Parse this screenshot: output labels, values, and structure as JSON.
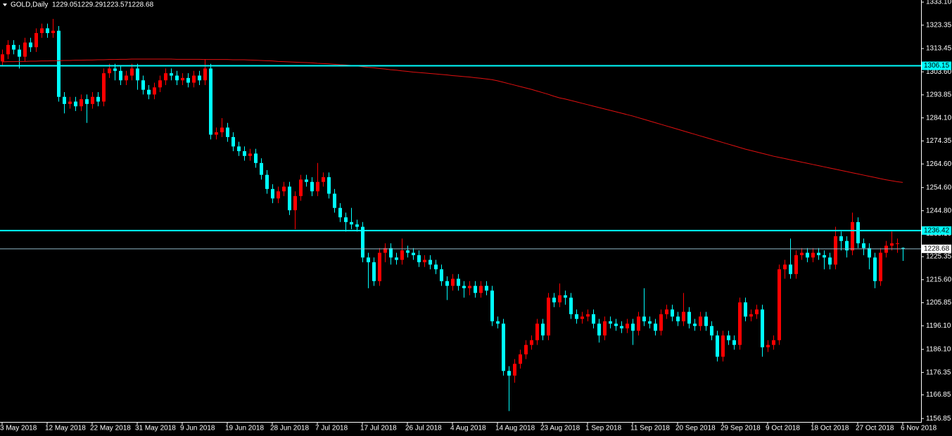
{
  "chart_data": {
    "type": "candlestick",
    "symbol": "GOLD,Daily",
    "categories": [
      "3 May 2018",
      null,
      null,
      null,
      null,
      null,
      null,
      null,
      "12 May 2018",
      null,
      null,
      null,
      null,
      null,
      null,
      null,
      "22 May 2018",
      null,
      null,
      null,
      null,
      null,
      null,
      null,
      "31 May 2018",
      null,
      null,
      null,
      null,
      null,
      null,
      null,
      "9 Jun 2018",
      null,
      null,
      null,
      null,
      null,
      null,
      null,
      "19 Jun 2018",
      null,
      null,
      null,
      null,
      null,
      null,
      null,
      "28 Jun 2018",
      null,
      null,
      null,
      null,
      null,
      null,
      null,
      "7 Jul 2018",
      null,
      null,
      null,
      null,
      null,
      null,
      null,
      "17 Jul 2018",
      null,
      null,
      null,
      null,
      null,
      null,
      null,
      "26 Jul 2018",
      null,
      null,
      null,
      null,
      null,
      null,
      null,
      "4 Aug 2018",
      null,
      null,
      null,
      null,
      null,
      null,
      null,
      "14 Aug 2018",
      null,
      null,
      null,
      null,
      null,
      null,
      null,
      "23 Aug 2018",
      null,
      null,
      null,
      null,
      null,
      null,
      null,
      "1 Sep 2018",
      null,
      null,
      null,
      null,
      null,
      null,
      null,
      "11 Sep 2018",
      null,
      null,
      null,
      null,
      null,
      null,
      null,
      "20 Sep 2018",
      null,
      null,
      null,
      null,
      null,
      null,
      null,
      "29 Sep 2018",
      null,
      null,
      null,
      null,
      null,
      null,
      null,
      "9 Oct 2018",
      null,
      null,
      null,
      null,
      null,
      null,
      null,
      "18 Oct 2018",
      null,
      null,
      null,
      null,
      null,
      null,
      null,
      "27 Oct 2018",
      null,
      null,
      null,
      null,
      null,
      null,
      null,
      "6 Nov 2018"
    ],
    "open": [
      1308,
      1311,
      1315,
      1313,
      1310,
      1316,
      1314,
      1320,
      1322,
      1320,
      1321,
      1293,
      1290,
      1291,
      1289,
      1292,
      1290,
      1293,
      1291,
      1303,
      1305,
      1304,
      1300,
      1302,
      1305,
      1300,
      1296,
      1294,
      1297,
      1300,
      1303,
      1302,
      1300,
      1301,
      1299,
      1302,
      1300,
      1305,
      1277,
      1278,
      1280,
      1276,
      1272,
      1270,
      1268,
      1269,
      1265,
      1260,
      1254,
      1250,
      1253,
      1255,
      1245,
      1251,
      1258,
      1257,
      1253,
      1257,
      1259,
      1252,
      1246,
      1242,
      1240,
      1239,
      1238,
      1225,
      1223,
      1215,
      1227,
      1229,
      1225,
      1224,
      1228,
      1227,
      1226,
      1223,
      1224,
      1222,
      1220,
      1215,
      1213,
      1216,
      1213,
      1212,
      1213,
      1210,
      1213,
      1211,
      1198,
      1197,
      1177,
      1175,
      1180,
      1184,
      1188,
      1190,
      1197,
      1192,
      1208,
      1206,
      1209,
      1208,
      1201,
      1199,
      1200,
      1201,
      1197,
      1192,
      1198,
      1197,
      1196,
      1195,
      1197,
      1194,
      1200,
      1198,
      1197,
      1194,
      1201,
      1203,
      1200,
      1198,
      1202,
      1197,
      1196,
      1200,
      1196,
      1192,
      1183,
      1192,
      1190,
      1188,
      1206,
      1200,
      1201,
      1203,
      1187,
      1188,
      1190,
      1220,
      1222,
      1218,
      1226,
      1227,
      1225,
      1227,
      1226,
      1225,
      1222,
      1234,
      1232,
      1228,
      1240,
      1231,
      1229,
      1225,
      1215,
      1227,
      1230,
      1231,
      1229.05
    ],
    "high": [
      1313,
      1317,
      1317,
      1315,
      1318,
      1318,
      1322,
      1324,
      1324,
      1326,
      1323,
      1295,
      1293,
      1293,
      1294,
      1294,
      1295,
      1295,
      1305,
      1307,
      1307,
      1306,
      1304,
      1307,
      1307,
      1302,
      1298,
      1299,
      1302,
      1305,
      1305,
      1304,
      1303,
      1303,
      1304,
      1304,
      1309,
      1307,
      1280,
      1284,
      1282,
      1278,
      1274,
      1272,
      1271,
      1271,
      1267,
      1262,
      1256,
      1255,
      1257,
      1257,
      1253,
      1260,
      1260,
      1259,
      1265,
      1261,
      1261,
      1254,
      1248,
      1244,
      1246,
      1241,
      1240,
      1227,
      1225,
      1229,
      1231,
      1231,
      1227,
      1233,
      1230,
      1229,
      1228,
      1226,
      1226,
      1224,
      1222,
      1217,
      1218,
      1218,
      1215,
      1215,
      1215,
      1215,
      1215,
      1213,
      1200,
      1199,
      1179,
      1182,
      1186,
      1190,
      1192,
      1199,
      1199,
      1210,
      1210,
      1214,
      1211,
      1210,
      1203,
      1202,
      1203,
      1203,
      1199,
      1200,
      1200,
      1199,
      1198,
      1199,
      1199,
      1202,
      1212,
      1200,
      1199,
      1203,
      1205,
      1205,
      1202,
      1210,
      1204,
      1199,
      1202,
      1202,
      1198,
      1194,
      1194,
      1194,
      1192,
      1208,
      1208,
      1203,
      1205,
      1205,
      1190,
      1192,
      1222,
      1224,
      1233,
      1228,
      1229,
      1229,
      1229,
      1229,
      1228,
      1227,
      1238,
      1236,
      1234,
      1244,
      1242,
      1233,
      1231,
      1227,
      1229,
      1232,
      1236,
      1233,
      1229.29
    ],
    "low": [
      1306,
      1309,
      1311,
      1305,
      1308,
      1312,
      1312,
      1318,
      1318,
      1318,
      1291,
      1286,
      1288,
      1287,
      1287,
      1282,
      1288,
      1289,
      1289,
      1301,
      1300,
      1298,
      1298,
      1300,
      1296,
      1294,
      1292,
      1292,
      1295,
      1298,
      1300,
      1298,
      1298,
      1297,
      1297,
      1298,
      1298,
      1275,
      1275,
      1276,
      1274,
      1270,
      1268,
      1266,
      1266,
      1263,
      1258,
      1252,
      1248,
      1248,
      1251,
      1243,
      1237,
      1249,
      1255,
      1251,
      1251,
      1255,
      1250,
      1244,
      1240,
      1236,
      1237,
      1236,
      1223,
      1212,
      1213,
      1213,
      1223,
      1222,
      1222,
      1222,
      1225,
      1224,
      1221,
      1221,
      1220,
      1218,
      1213,
      1207,
      1211,
      1211,
      1208,
      1209,
      1208,
      1208,
      1209,
      1196,
      1195,
      1175,
      1160,
      1172,
      1178,
      1182,
      1186,
      1188,
      1190,
      1190,
      1204,
      1204,
      1205,
      1199,
      1197,
      1197,
      1198,
      1195,
      1189,
      1190,
      1195,
      1194,
      1193,
      1193,
      1188,
      1192,
      1196,
      1195,
      1192,
      1192,
      1199,
      1198,
      1196,
      1196,
      1195,
      1194,
      1194,
      1194,
      1190,
      1181,
      1181,
      1188,
      1186,
      1186,
      1198,
      1198,
      1199,
      1183,
      1185,
      1186,
      1188,
      1216,
      1216,
      1216,
      1224,
      1223,
      1223,
      1224,
      1220,
      1220,
      1220,
      1228,
      1225,
      1226,
      1229,
      1226,
      1220,
      1212,
      1213,
      1225,
      1228,
      1227,
      1223.57
    ],
    "close": [
      1311,
      1315,
      1313,
      1310,
      1316,
      1314,
      1320,
      1322,
      1320,
      1321,
      1293,
      1290,
      1291,
      1289,
      1292,
      1290,
      1293,
      1291,
      1303,
      1305,
      1304,
      1300,
      1302,
      1305,
      1300,
      1296,
      1294,
      1297,
      1300,
      1303,
      1302,
      1300,
      1301,
      1299,
      1302,
      1300,
      1305,
      1277,
      1278,
      1280,
      1276,
      1272,
      1270,
      1268,
      1269,
      1265,
      1260,
      1254,
      1250,
      1253,
      1255,
      1245,
      1251,
      1258,
      1257,
      1253,
      1257,
      1259,
      1252,
      1246,
      1242,
      1240,
      1239,
      1238,
      1225,
      1223,
      1215,
      1227,
      1229,
      1225,
      1224,
      1228,
      1227,
      1226,
      1223,
      1224,
      1222,
      1220,
      1215,
      1213,
      1216,
      1213,
      1212,
      1213,
      1210,
      1213,
      1211,
      1198,
      1197,
      1177,
      1175,
      1180,
      1184,
      1188,
      1190,
      1197,
      1192,
      1208,
      1206,
      1209,
      1208,
      1201,
      1199,
      1200,
      1201,
      1197,
      1192,
      1198,
      1197,
      1196,
      1195,
      1197,
      1194,
      1200,
      1198,
      1197,
      1194,
      1201,
      1203,
      1200,
      1198,
      1202,
      1197,
      1196,
      1200,
      1196,
      1192,
      1183,
      1192,
      1190,
      1188,
      1206,
      1200,
      1201,
      1203,
      1187,
      1188,
      1190,
      1220,
      1222,
      1218,
      1226,
      1227,
      1225,
      1227,
      1226,
      1225,
      1222,
      1234,
      1232,
      1228,
      1240,
      1231,
      1229,
      1225,
      1215,
      1227,
      1230,
      1231,
      1231,
      1228.68
    ],
    "up_color": "#ff0000",
    "down_color": "#00ffff",
    "moving_average": {
      "color": "#e01010",
      "values": [
        1307.8,
        1307.9,
        1307.9,
        1308.0,
        1308.0,
        1308.1,
        1308.1,
        1308.2,
        1308.2,
        1308.3,
        1308.3,
        1308.4,
        1308.4,
        1308.5,
        1308.5,
        1308.6,
        1308.6,
        1308.7,
        1308.7,
        1308.8,
        1308.8,
        1308.9,
        1308.9,
        1309.0,
        1309.0,
        1309.0,
        1309.0,
        1309.0,
        1309.0,
        1309.0,
        1309.0,
        1308.9,
        1308.9,
        1308.9,
        1308.9,
        1308.9,
        1308.8,
        1308.8,
        1308.8,
        1308.8,
        1308.8,
        1308.7,
        1308.7,
        1308.7,
        1308.6,
        1308.5,
        1308.4,
        1308.3,
        1308.2,
        1308.0,
        1307.9,
        1307.8,
        1307.7,
        1307.6,
        1307.5,
        1307.4,
        1307.2,
        1307.1,
        1307.0,
        1306.8,
        1306.6,
        1306.5,
        1306.3,
        1306.1,
        1305.8,
        1305.5,
        1305.3,
        1305.0,
        1304.8,
        1304.5,
        1304.3,
        1304.0,
        1303.8,
        1303.5,
        1303.3,
        1303.1,
        1302.9,
        1302.7,
        1302.5,
        1302.3,
        1302.0,
        1301.8,
        1301.6,
        1301.4,
        1301.1,
        1300.9,
        1300.6,
        1300.3,
        1299.8,
        1299.2,
        1298.6,
        1298.0,
        1297.4,
        1296.8,
        1296.2,
        1295.5,
        1294.8,
        1294.1,
        1293.3,
        1292.6,
        1292.1,
        1291.5,
        1290.9,
        1290.3,
        1289.7,
        1289.1,
        1288.5,
        1287.9,
        1287.3,
        1286.7,
        1286.1,
        1285.5,
        1284.9,
        1284.2,
        1283.5,
        1282.8,
        1282.1,
        1281.4,
        1280.7,
        1280.0,
        1279.3,
        1278.6,
        1277.9,
        1277.2,
        1276.5,
        1275.8,
        1275.1,
        1274.4,
        1273.7,
        1273.0,
        1272.3,
        1271.6,
        1270.9,
        1270.3,
        1269.7,
        1269.1,
        1268.5,
        1267.9,
        1267.4,
        1266.9,
        1266.4,
        1265.9,
        1265.4,
        1264.9,
        1264.4,
        1263.9,
        1263.4,
        1262.9,
        1262.4,
        1261.9,
        1261.4,
        1260.9,
        1260.4,
        1259.9,
        1259.4,
        1258.9,
        1258.4,
        1257.9,
        1257.5,
        1257.1,
        1256.8
      ]
    },
    "levels": [
      {
        "value": 1306.15,
        "color": "#00ffff"
      },
      {
        "value": 1236.42,
        "color": "#00ffff"
      },
      {
        "value": 1228.68,
        "color": "#8fb8c8"
      }
    ],
    "ylim": [
      1155.4,
      1334.0
    ],
    "yticks": [
      {
        "value": 1333.1,
        "label": "1333.10"
      },
      1323.35,
      1313.45,
      {
        "value": 1303.6,
        "label": "1303.60"
      },
      1293.85,
      {
        "value": 1284.1,
        "label": "1284.10"
      },
      1274.35,
      {
        "value": 1264.6,
        "label": "1264.60"
      },
      {
        "value": 1254.6,
        "label": "1254.60"
      },
      {
        "value": 1244.8,
        "label": "1244.80"
      },
      {
        "value": 1235.1,
        "label": "1235.10"
      },
      1225.35,
      {
        "value": 1215.6,
        "label": "1215.60"
      },
      1205.85,
      {
        "value": 1196.1,
        "label": "1196.10"
      },
      {
        "value": 1186.1,
        "label": "1186.10"
      },
      1176.35,
      1166.85,
      1156.85
    ]
  }
}
